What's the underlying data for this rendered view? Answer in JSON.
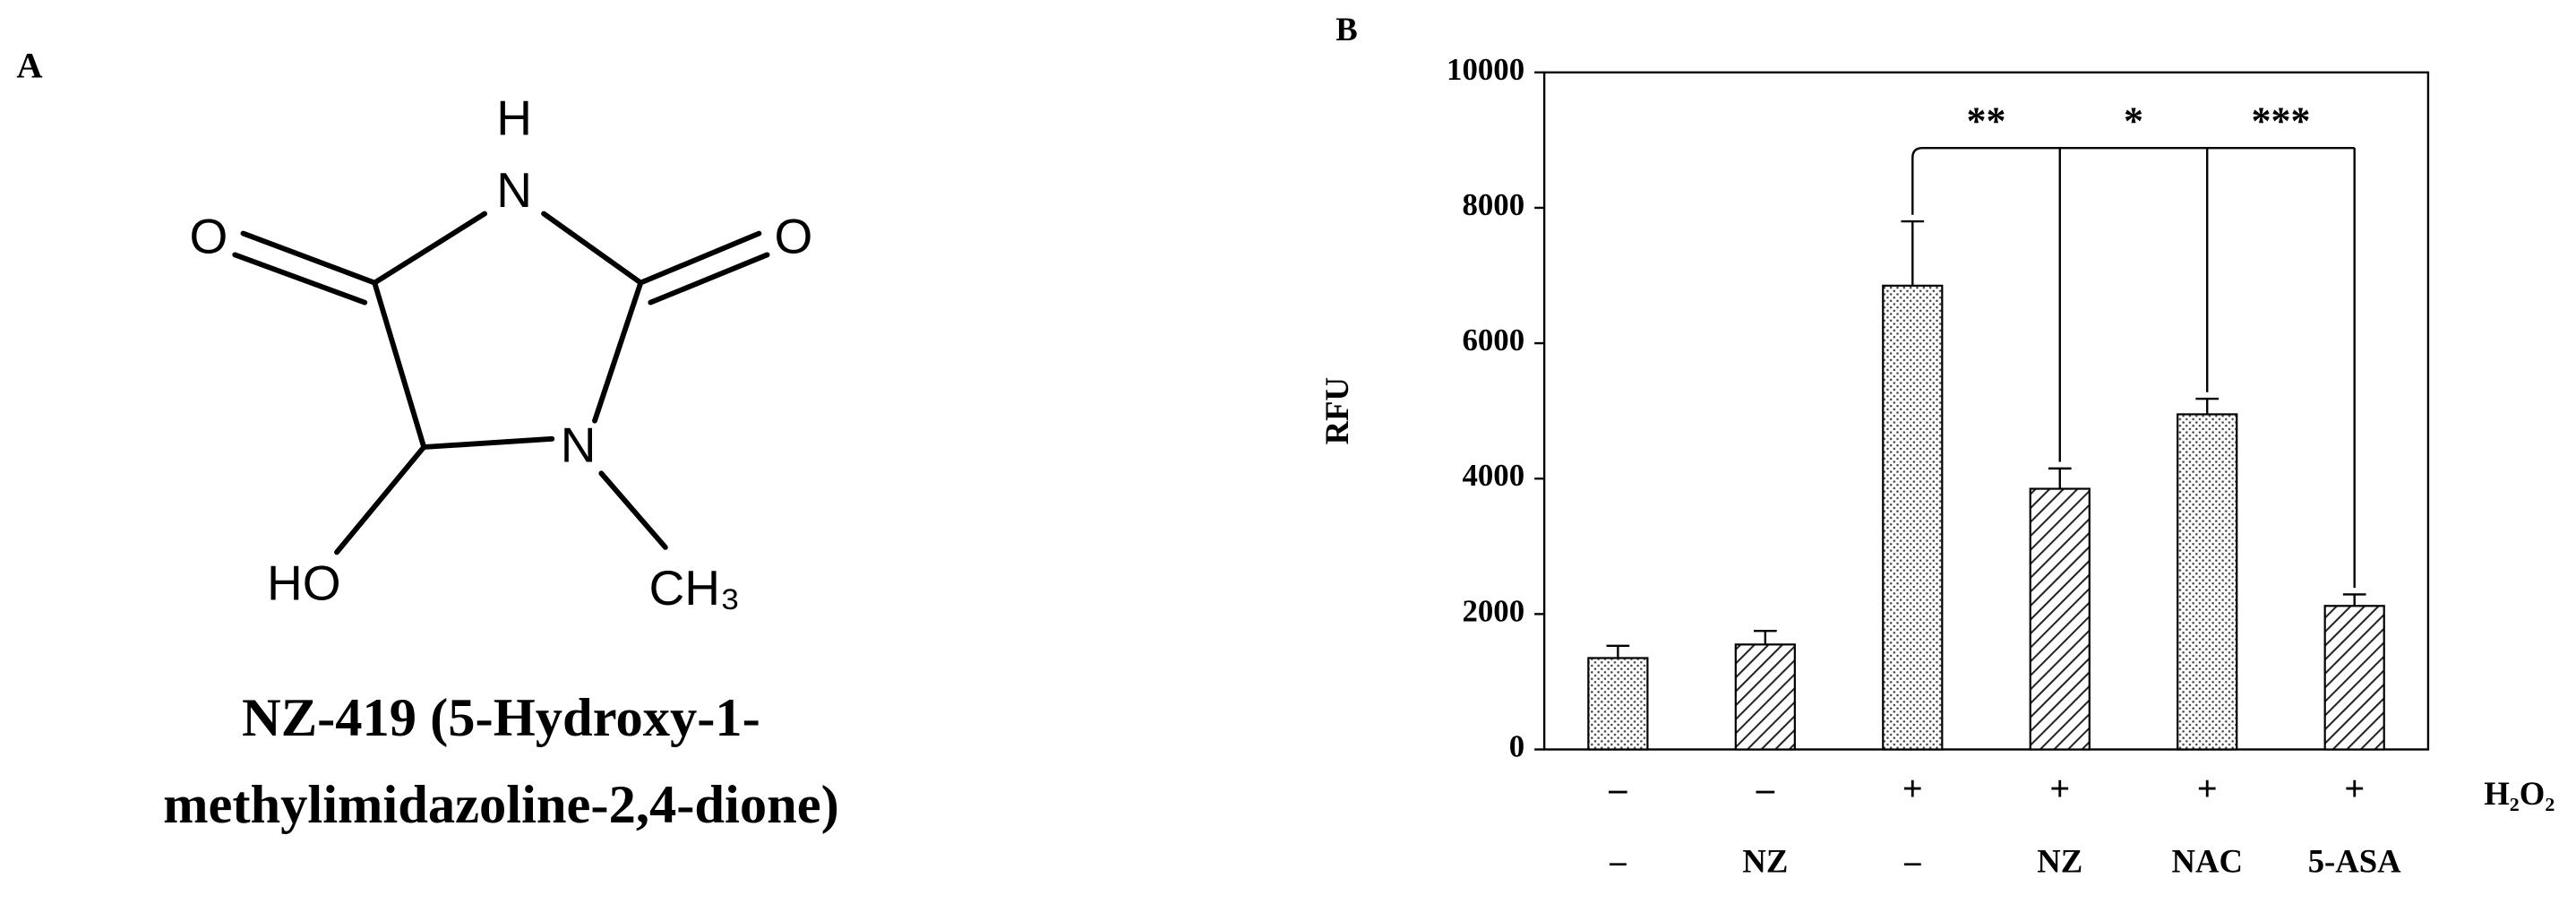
{
  "panel_a": {
    "label": "A",
    "atoms": {
      "h": "H",
      "n3": "N",
      "o_left": "O",
      "o_right": "O",
      "n1": "N",
      "ho": "HO",
      "ch3": "CH₃"
    },
    "caption": [
      "NZ-419 (5-Hydroxy-1-",
      "methylimidazoline-2,4-dione)"
    ]
  },
  "chart_data": {
    "type": "bar",
    "panel_label": "B",
    "ylabel": "RFU",
    "categories": [
      "–",
      "NZ",
      "–",
      "NZ",
      "NAC",
      "5-ASA"
    ],
    "h2o2_row": [
      "–",
      "–",
      "+",
      "+",
      "+",
      "+"
    ],
    "h2o2_label": "H₂O₂",
    "values": [
      1350,
      1550,
      6850,
      3850,
      4950,
      2120
    ],
    "errors": [
      180,
      200,
      950,
      300,
      230,
      170
    ],
    "patterns": [
      "dots",
      "hatch",
      "dots",
      "hatch",
      "dots",
      "hatch"
    ],
    "significance": [
      "**",
      "*",
      "***"
    ],
    "ylim": [
      0,
      10000
    ],
    "yticks": [
      0,
      2000,
      4000,
      6000,
      8000,
      10000
    ],
    "color": "#000000"
  }
}
